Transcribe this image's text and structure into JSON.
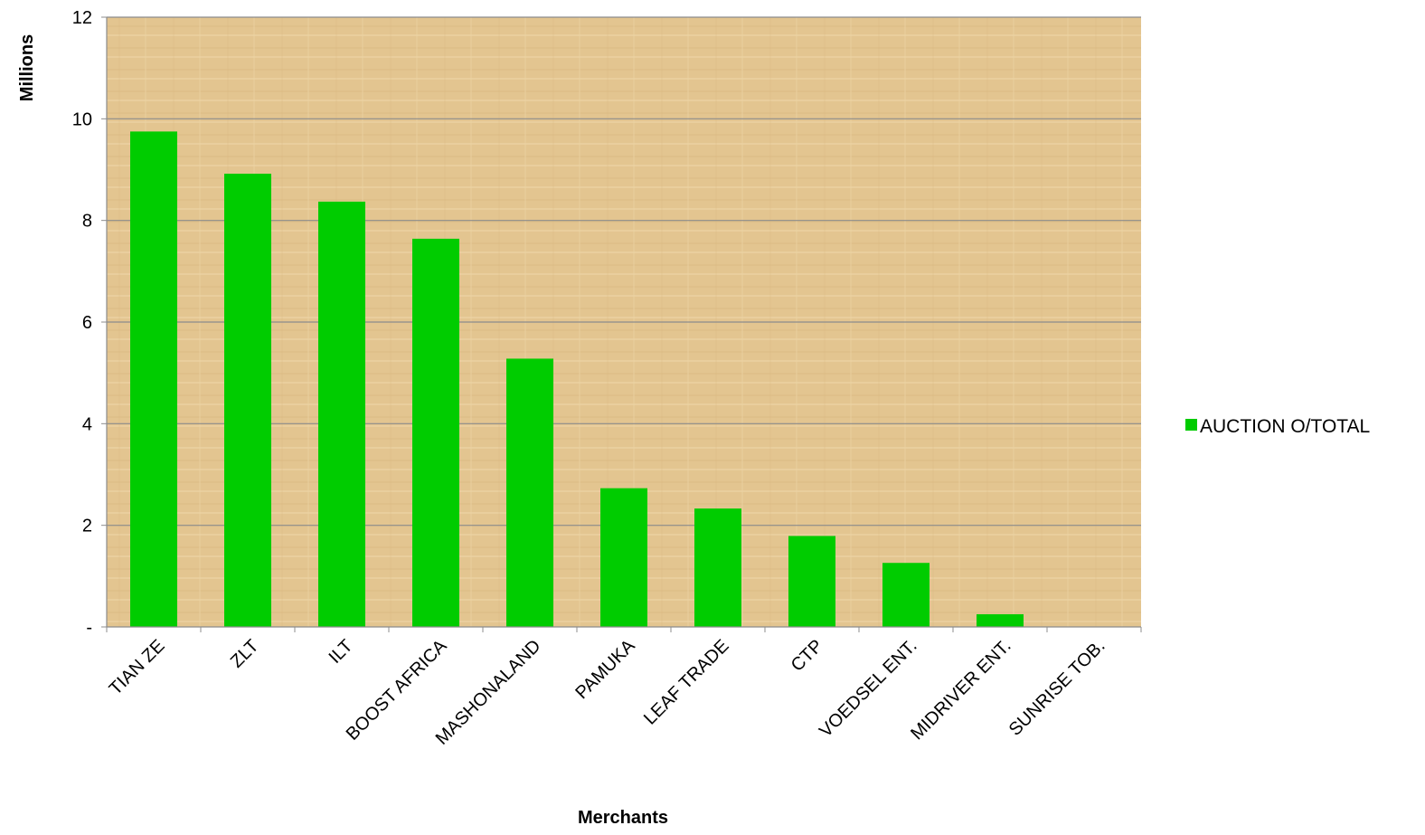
{
  "chart_data": {
    "type": "bar",
    "categories": [
      "TIAN ZE",
      "ZLT",
      "ILT",
      "BOOST AFRICA",
      "MASHONALAND",
      "PAMUKA",
      "LEAF TRADE",
      "CTP",
      "VOEDSEL ENT.",
      "MIDRIVER ENT.",
      "SUNRISE TOB."
    ],
    "series": [
      {
        "name": "AUCTION O/TOTAL",
        "color": "#00cc00",
        "values": [
          9.75,
          8.92,
          8.37,
          7.64,
          5.28,
          2.73,
          2.33,
          1.79,
          1.26,
          0.25,
          0
        ]
      }
    ],
    "xlabel": "Merchants",
    "ylabel": "Millions",
    "ylim": [
      0,
      12
    ],
    "yticks": [
      0,
      2,
      4,
      6,
      8,
      10,
      12
    ],
    "ytick_labels": [
      "-",
      "2",
      "4",
      "6",
      "8",
      "10",
      "12"
    ],
    "grid": true,
    "legend_position": "right",
    "plot_background": "#e2c490",
    "gridline_color": "#8c8c8c"
  }
}
